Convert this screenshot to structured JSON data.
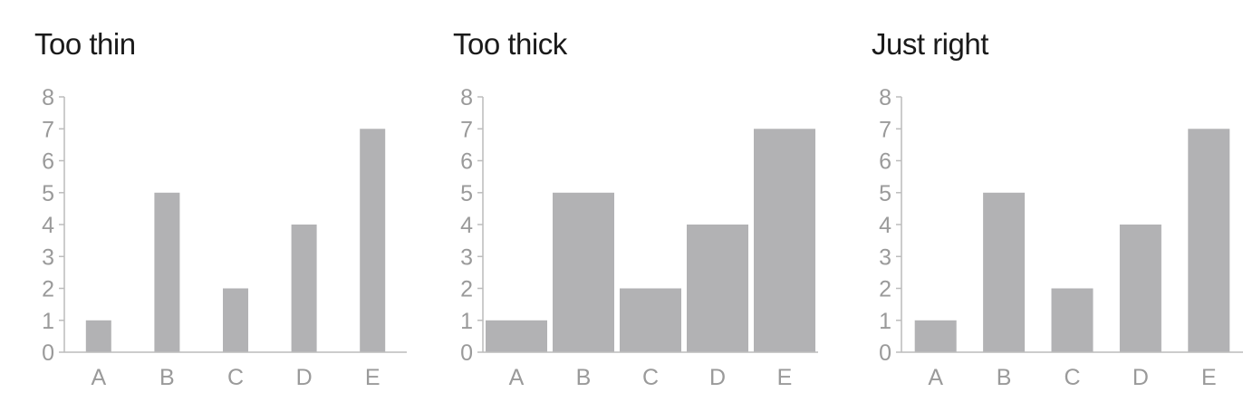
{
  "colors": {
    "bar": "#b2b2b4",
    "axis": "#bcbcbc",
    "tick_label": "#9a9a9a",
    "title": "#1a1a1a"
  },
  "chart_data": [
    {
      "type": "bar",
      "title": "Too thin",
      "categories": [
        "A",
        "B",
        "C",
        "D",
        "E"
      ],
      "values": [
        1,
        5,
        2,
        4,
        7
      ],
      "yticks": [
        "0",
        "1",
        "2",
        "3",
        "4",
        "5",
        "6",
        "7",
        "8"
      ],
      "ylim": [
        0,
        8
      ],
      "xlabel": "",
      "ylabel": "",
      "grid": false,
      "bar_width": "thin"
    },
    {
      "type": "bar",
      "title": "Too thick",
      "categories": [
        "A",
        "B",
        "C",
        "D",
        "E"
      ],
      "values": [
        1,
        5,
        2,
        4,
        7
      ],
      "yticks": [
        "0",
        "1",
        "2",
        "3",
        "4",
        "5",
        "6",
        "7",
        "8"
      ],
      "ylim": [
        0,
        8
      ],
      "xlabel": "",
      "ylabel": "",
      "grid": false,
      "bar_width": "thick"
    },
    {
      "type": "bar",
      "title": "Just right",
      "categories": [
        "A",
        "B",
        "C",
        "D",
        "E"
      ],
      "values": [
        1,
        5,
        2,
        4,
        7
      ],
      "yticks": [
        "0",
        "1",
        "2",
        "3",
        "4",
        "5",
        "6",
        "7",
        "8"
      ],
      "ylim": [
        0,
        8
      ],
      "xlabel": "",
      "ylabel": "",
      "grid": false,
      "bar_width": "medium"
    }
  ]
}
